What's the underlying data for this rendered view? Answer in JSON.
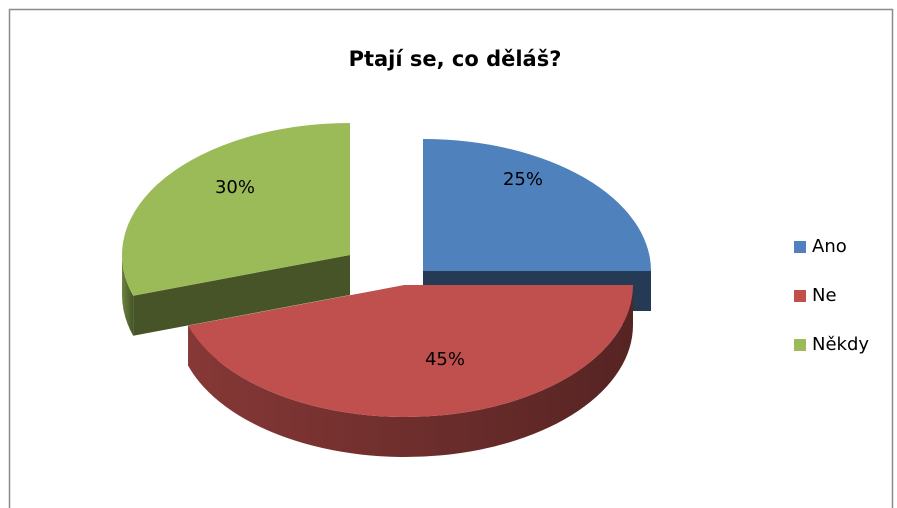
{
  "chart_data": {
    "type": "pie3d",
    "title": "Ptají se, co děláš?",
    "categories": [
      "Ano",
      "Ne",
      "Někdy"
    ],
    "values": [
      25,
      45,
      30
    ],
    "value_labels": [
      "25%",
      "45%",
      "30%"
    ],
    "colors": [
      "#4f81bd",
      "#c0504d",
      "#9bbb59"
    ],
    "legend": "right"
  }
}
